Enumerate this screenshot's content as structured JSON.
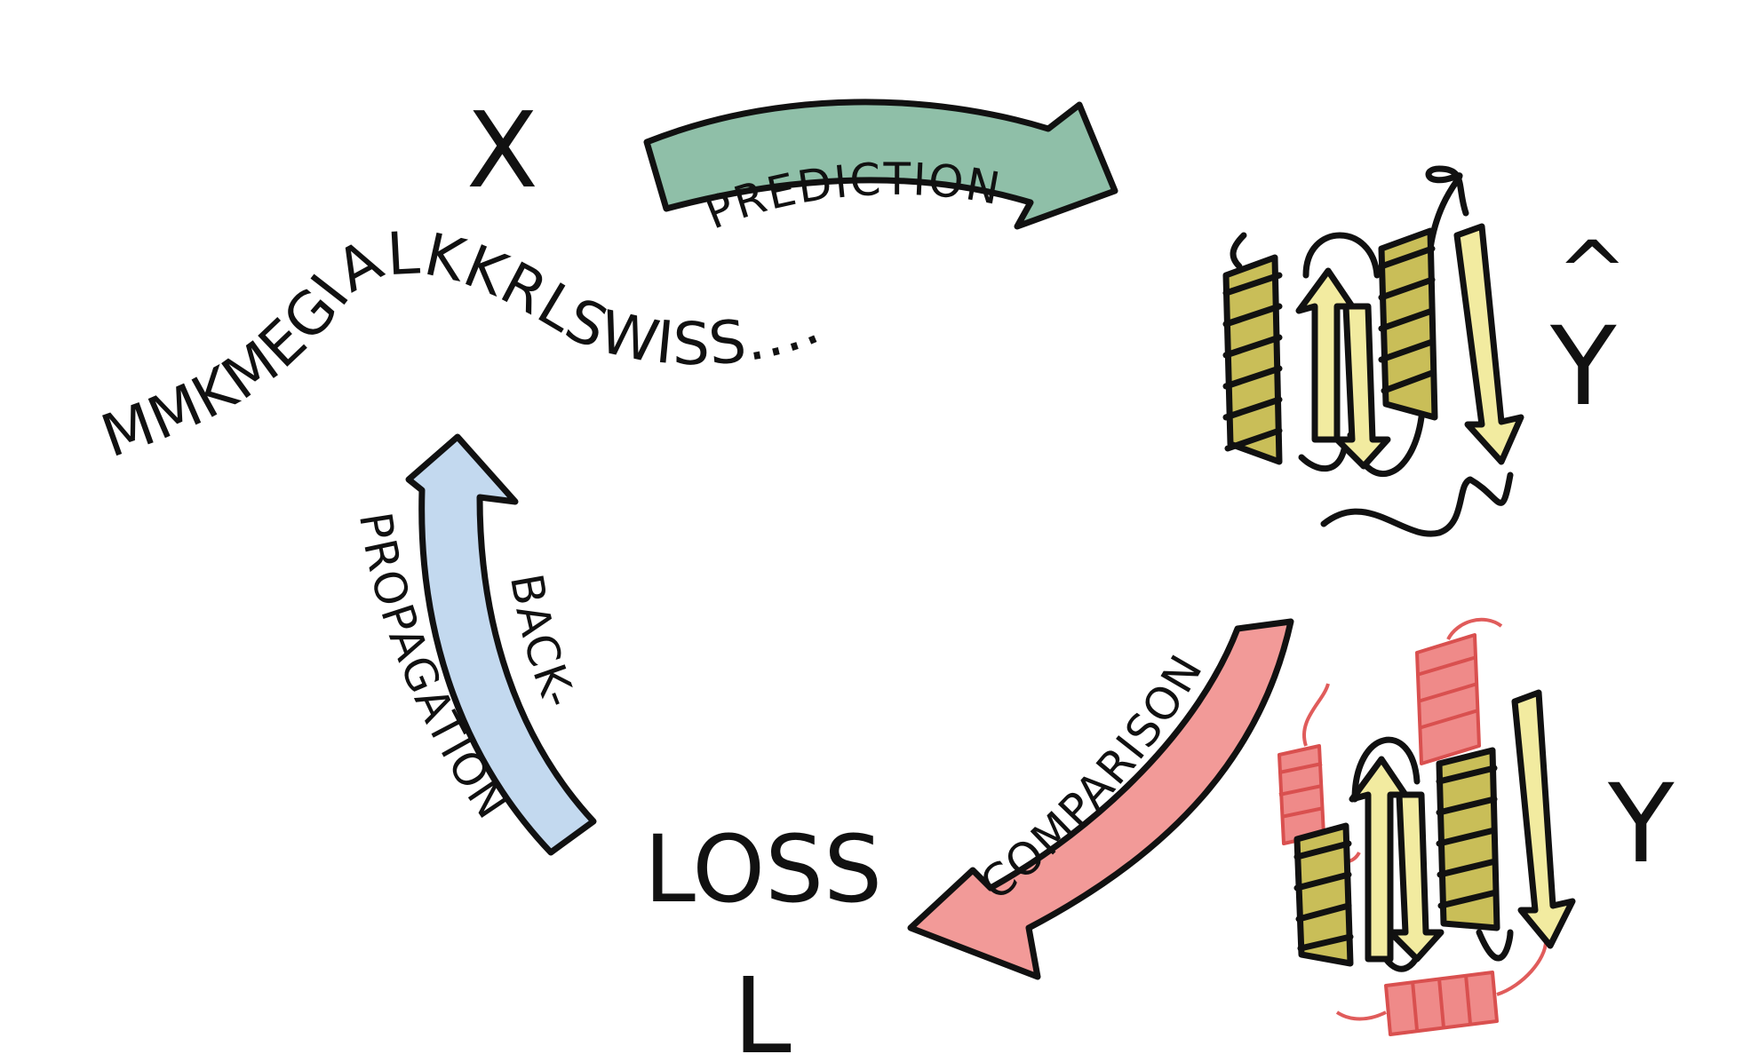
{
  "labels": {
    "input": "X",
    "sequence": "MMKMEGIALKKRLSWISS.....",
    "prediction_symbol": "Y",
    "hat": "^",
    "target_symbol": "Y",
    "loss_word": "LOSS",
    "loss_symbol": "L"
  },
  "arrows": {
    "prediction": "PREDICTION",
    "comparison": "COMPARISON",
    "backprop_line1": "BACK-",
    "backprop_line2": "PROPAGATION"
  },
  "colors": {
    "prediction_arrow": "#8fbfa8",
    "comparison_arrow": "#f29a98",
    "backprop_arrow": "#c3d9ef",
    "helix_predicted": "#c9be58",
    "strand": "#f2eba0",
    "helix_true_mismatch": "#ef8a89",
    "ink": "#111111"
  }
}
